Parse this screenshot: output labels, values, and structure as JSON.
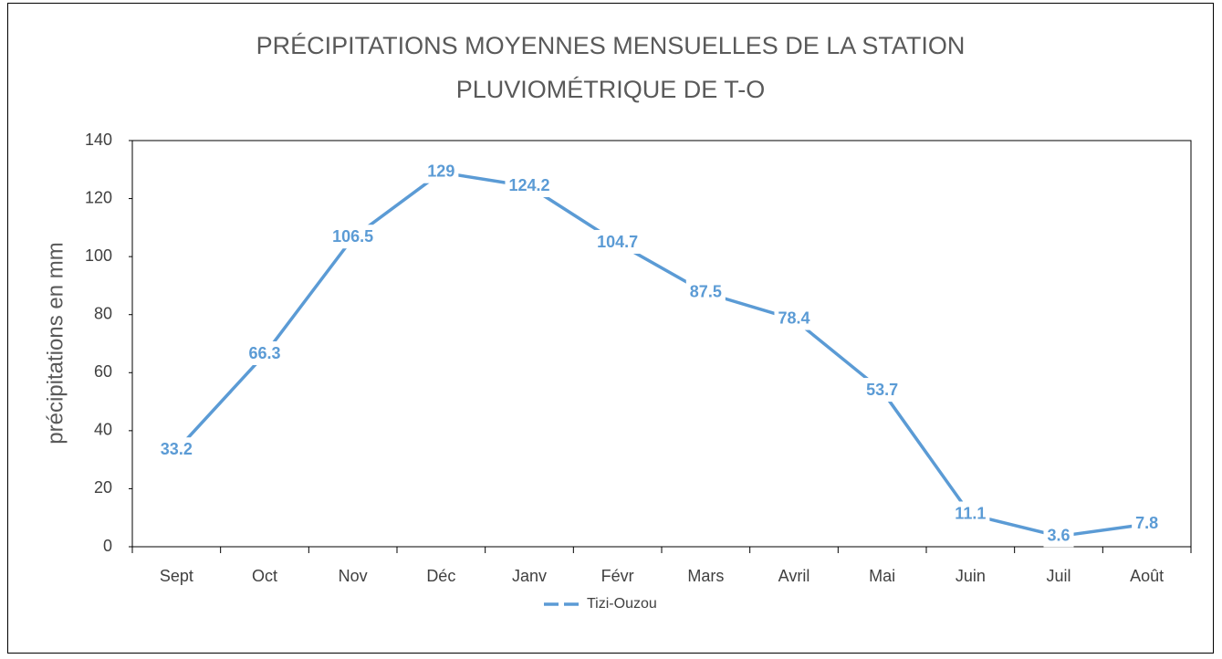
{
  "chart_data": {
    "type": "line",
    "title": [
      "PRÉCIPITATIONS MOYENNES MENSUELLES DE LA STATION",
      "PLUVIOMÉTRIQUE DE T-O"
    ],
    "y_label": "précipitations en mm",
    "categories": [
      "Sept",
      "Oct",
      "Nov",
      "Déc",
      "Janv",
      "Févr",
      "Mars",
      "Avril",
      "Mai",
      "Juin",
      "Juil",
      "Août"
    ],
    "series": [
      {
        "name": "Tizi-Ouzou",
        "color": "#5b9bd5",
        "values": [
          33.2,
          66.3,
          106.5,
          129,
          124.2,
          104.7,
          87.5,
          78.4,
          53.7,
          11.1,
          3.6,
          7.8
        ]
      }
    ],
    "ylim": [
      0,
      140
    ],
    "yticks": [
      0,
      20,
      40,
      60,
      80,
      100,
      120,
      140
    ],
    "legend": "bottom"
  }
}
